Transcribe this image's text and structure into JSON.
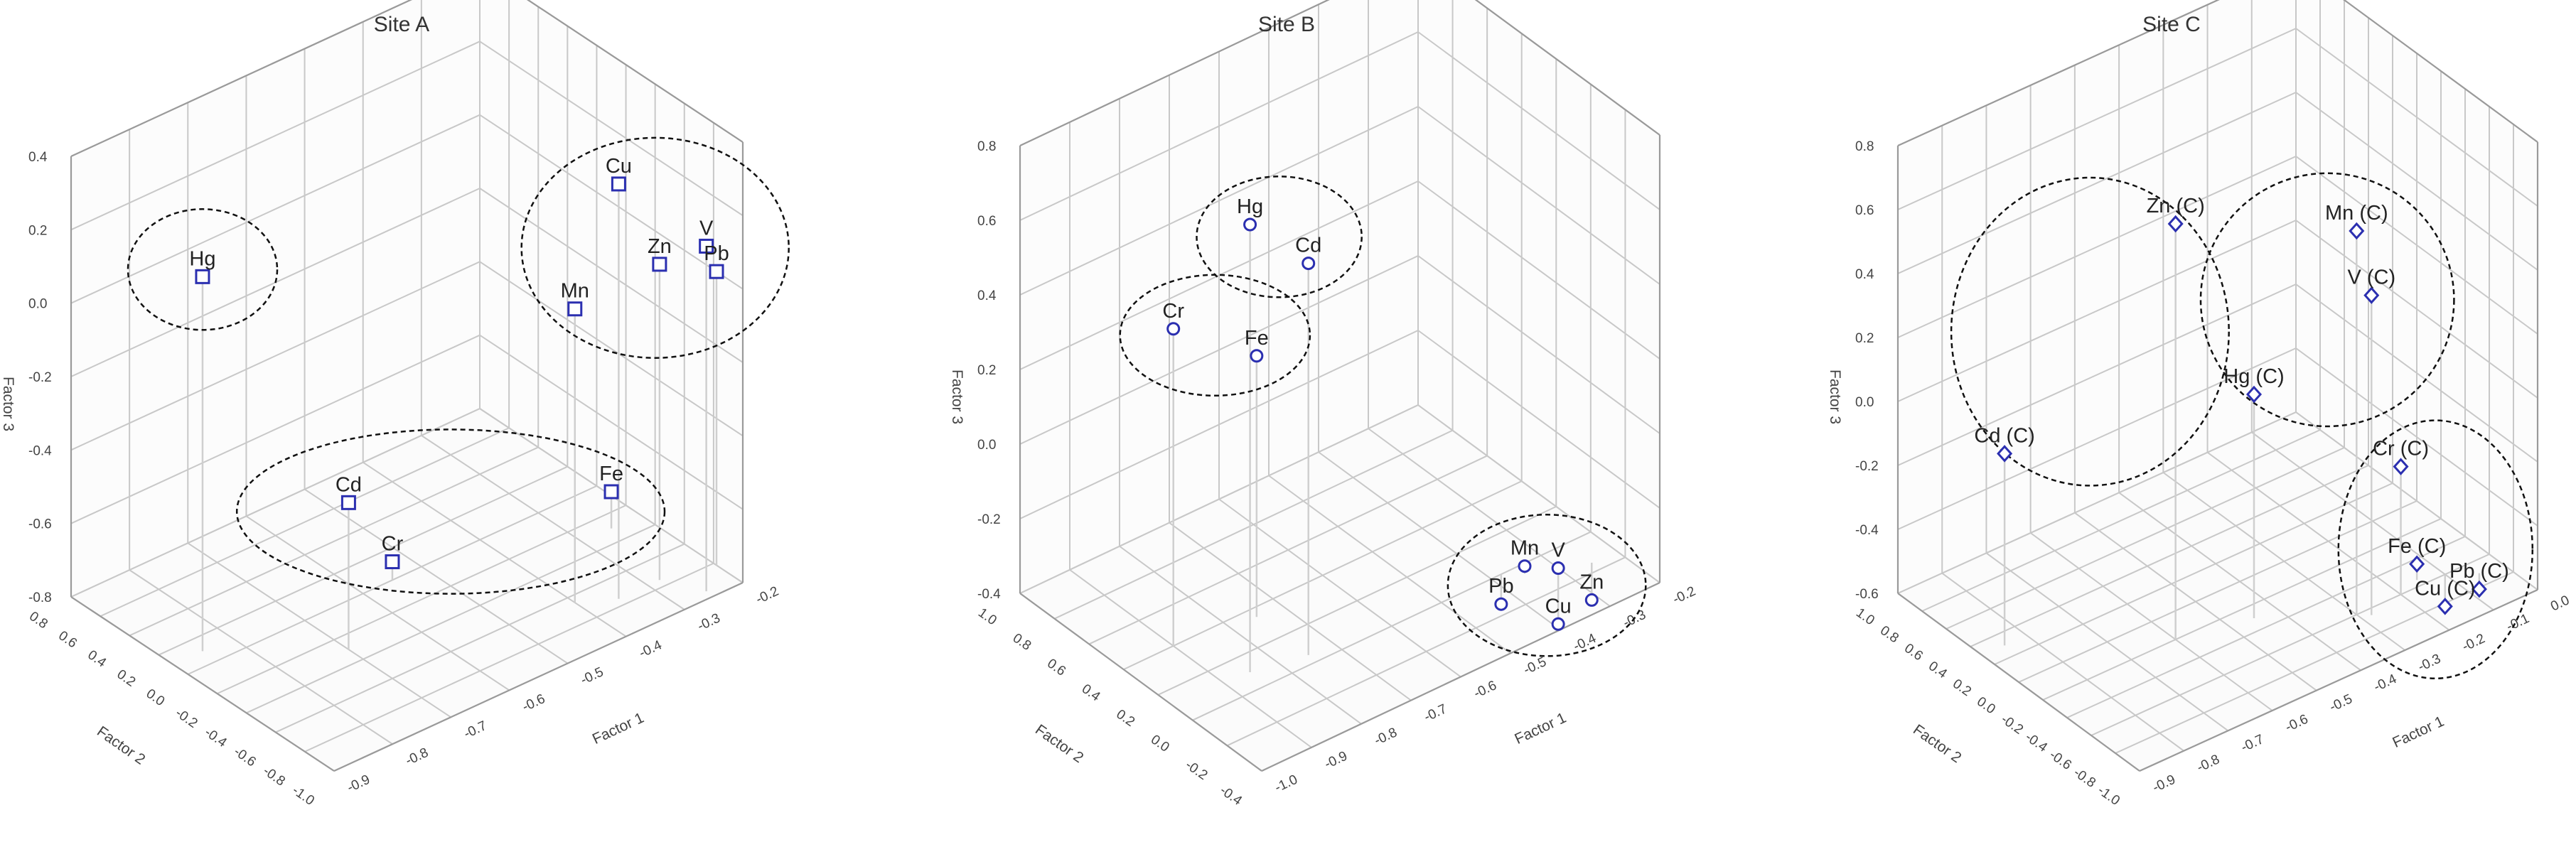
{
  "chart_data": [
    {
      "type": "scatter3d",
      "title": "Site A",
      "xlabel": "Factor 1",
      "ylabel": "Factor 2",
      "zlabel": "Factor 3",
      "xticks": [
        "-0.2",
        "-0.3",
        "-0.4",
        "-0.5",
        "-0.6",
        "-0.7",
        "-0.8",
        "-0.9"
      ],
      "yticks": [
        "0.8",
        "0.6",
        "0.4",
        "0.2",
        "0.0",
        "-0.2",
        "-0.4",
        "-0.6",
        "-0.8",
        "-1.0"
      ],
      "zticks": [
        "0.4",
        "0.2",
        "0.0",
        "-0.2",
        "-0.4",
        "-0.6",
        "-0.8"
      ],
      "marker": "square",
      "marker_color": "#2b2fb0",
      "points": [
        {
          "label": "Cu",
          "x": -0.75,
          "y": 0.55,
          "z": 0.33
        },
        {
          "label": "V",
          "x": -0.85,
          "y": 0.75,
          "z": 0.14
        },
        {
          "label": "Zn",
          "x": -0.82,
          "y": 0.55,
          "z": 0.06
        },
        {
          "label": "Pb",
          "x": -0.9,
          "y": 0.62,
          "z": 0.0
        },
        {
          "label": "Mn",
          "x": -0.7,
          "y": 0.45,
          "z": 0.0
        },
        {
          "label": "Hg",
          "x": -0.25,
          "y": -0.3,
          "z": 0.22
        },
        {
          "label": "Cd",
          "x": -0.4,
          "y": 0.1,
          "z": -0.4
        },
        {
          "label": "Fe",
          "x": -0.85,
          "y": 0.1,
          "z": -0.7
        },
        {
          "label": "Cr",
          "x": -0.55,
          "y": -0.2,
          "z": -0.75
        }
      ],
      "groups": [
        [
          "Cu",
          "V",
          "Zn",
          "Pb",
          "Mn"
        ],
        [
          "Hg"
        ],
        [
          "Cd",
          "Fe",
          "Cr"
        ]
      ]
    },
    {
      "type": "scatter3d",
      "title": "Site B",
      "xlabel": "Factor 1",
      "ylabel": "Factor 2",
      "zlabel": "Factor 3",
      "xticks": [
        "-0.2",
        "-0.3",
        "-0.4",
        "-0.5",
        "-0.6",
        "-0.7",
        "-0.8",
        "-0.9",
        "-1.0"
      ],
      "yticks": [
        "1.0",
        "0.8",
        "0.6",
        "0.4",
        "0.2",
        "0.0",
        "-0.2",
        "-0.4"
      ],
      "zticks": [
        "0.8",
        "0.6",
        "0.4",
        "0.2",
        "0.0",
        "-0.2",
        "-0.4"
      ],
      "marker": "circle",
      "marker_color": "#2b2fb0",
      "points": [
        {
          "label": "Hg",
          "x": -0.35,
          "y": 0.5,
          "z": 0.8
        },
        {
          "label": "Cd",
          "x": -0.45,
          "y": 0.55,
          "z": 0.65
        },
        {
          "label": "Cr",
          "x": -0.3,
          "y": 0.2,
          "z": 0.45
        },
        {
          "label": "Fe",
          "x": -0.45,
          "y": 0.25,
          "z": 0.3
        },
        {
          "label": "V",
          "x": -0.9,
          "y": 0.7,
          "z": -0.4
        },
        {
          "label": "Mn",
          "x": -0.85,
          "y": 0.65,
          "z": -0.38
        },
        {
          "label": "Zn",
          "x": -0.95,
          "y": 0.75,
          "z": -0.5
        },
        {
          "label": "Cu",
          "x": -0.9,
          "y": 0.7,
          "z": -0.55
        },
        {
          "label": "Pb",
          "x": -0.82,
          "y": 0.6,
          "z": -0.48
        }
      ],
      "groups": [
        [
          "Hg",
          "Cd"
        ],
        [
          "Cr",
          "Fe"
        ],
        [
          "V",
          "Mn",
          "Zn",
          "Cu",
          "Pb"
        ]
      ]
    },
    {
      "type": "scatter3d",
      "title": "Site C",
      "xlabel": "Factor 1",
      "ylabel": "Factor 2",
      "zlabel": "Factor 3",
      "xticks": [
        "0.0",
        "-0.1",
        "-0.2",
        "-0.3",
        "-0.4",
        "-0.5",
        "-0.6",
        "-0.7",
        "-0.8",
        "-0.9"
      ],
      "yticks": [
        "1.0",
        "0.8",
        "0.6",
        "0.4",
        "0.2",
        "0.0",
        "-0.2",
        "-0.4",
        "-0.6",
        "-0.8",
        "-1.0"
      ],
      "zticks": [
        "0.8",
        "0.6",
        "0.4",
        "0.2",
        "0.0",
        "-0.2",
        "-0.4",
        "-0.6"
      ],
      "marker": "diamond",
      "marker_color": "#2b2fb0",
      "points": [
        {
          "label": "Mn (C)",
          "x": -0.6,
          "y": 0.6,
          "z": 0.6
        },
        {
          "label": "V (C)",
          "x": -0.62,
          "y": 0.65,
          "z": 0.4
        },
        {
          "label": "Zn (C)",
          "x": -0.3,
          "y": 0.2,
          "z": 0.7
        },
        {
          "label": "Hg (C)",
          "x": -0.45,
          "y": 0.3,
          "z": 0.1
        },
        {
          "label": "Cd (C)",
          "x": -0.05,
          "y": -0.3,
          "z": 0.0
        },
        {
          "label": "Cr (C)",
          "x": -0.7,
          "y": 0.6,
          "z": -0.2
        },
        {
          "label": "Fe (C)",
          "x": -0.75,
          "y": 0.55,
          "z": -0.55
        },
        {
          "label": "Pb (C)",
          "x": -0.85,
          "y": 0.7,
          "z": -0.65
        },
        {
          "label": "Cu (C)",
          "x": -0.8,
          "y": 0.6,
          "z": -0.7
        }
      ],
      "groups": [
        [
          "Mn (C)",
          "V (C)",
          "Hg (C)"
        ],
        [
          "Zn (C)",
          "Cd (C)"
        ],
        [
          "Cr (C)",
          "Fe (C)",
          "Pb (C)",
          "Cu (C)"
        ]
      ]
    }
  ]
}
